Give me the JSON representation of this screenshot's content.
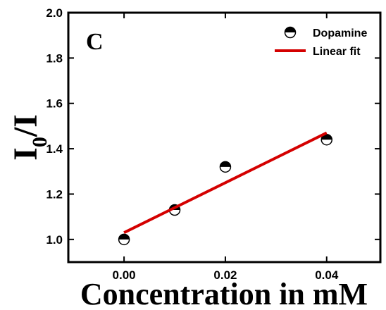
{
  "chart_data": {
    "type": "scatter",
    "panel_label": "C",
    "xlabel": "Concentration in mM",
    "ylabel": [
      "I",
      "0",
      "/I"
    ],
    "xlim": [
      -0.011,
      0.0506
    ],
    "ylim": [
      0.9,
      2.0
    ],
    "xticks": [
      {
        "value": 0,
        "label": "0.00"
      },
      {
        "value": 0.02,
        "label": "0.02"
      },
      {
        "value": 0.04,
        "label": "0.04"
      }
    ],
    "yticks": [
      {
        "value": 1,
        "label": "1.0"
      },
      1.2,
      1.4,
      1.6,
      1.8,
      {
        "value": 2,
        "label": "2.0"
      }
    ],
    "legend": "upper right",
    "series": [
      {
        "name": "Dopamine",
        "type": "scatter",
        "color": "#000000",
        "x": [
          0,
          0.01,
          0.02,
          0.04
        ],
        "values": [
          1.0,
          1.13,
          1.32,
          1.44
        ]
      },
      {
        "name": "Linear fit",
        "type": "line",
        "color": "#d40000",
        "x": [
          0,
          0.04
        ],
        "values": [
          1.03,
          1.47
        ]
      }
    ]
  }
}
